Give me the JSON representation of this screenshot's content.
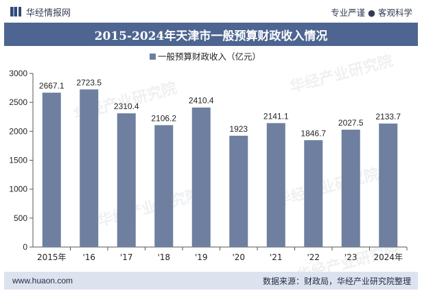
{
  "header": {
    "brand": "华经情报网",
    "tagline": "专业严谨 ● 客观科学"
  },
  "title": "2015-2024年天津市一般预算财政收入情况",
  "footer": {
    "website": "www.huaon.com",
    "source": "数据来源：财政局，华经产业研究院整理"
  },
  "watermark": "华经产业研究院",
  "colors": {
    "bar": "#6e7fa0",
    "title_bg": "#4d6590",
    "footer_bg": "#dde3ee",
    "text": "#222222"
  },
  "chart_data": {
    "type": "bar",
    "categories": [
      "2015年",
      "'16",
      "'17",
      "'18",
      "'19",
      "'20",
      "'21",
      "'22",
      "'23",
      "2024年"
    ],
    "series": [
      {
        "name": "一般预算财政收入（亿元）",
        "values": [
          2667.1,
          2723.5,
          2310.4,
          2106.2,
          2410.4,
          1923,
          2141.1,
          1846.7,
          2027.5,
          2133.7
        ]
      }
    ],
    "value_labels": [
      "2667.1",
      "2723.5",
      "2310.4",
      "2106.2",
      "2410.4",
      "1923",
      "2141.1",
      "1846.7",
      "2027.5",
      "2133.7"
    ],
    "y_ticks": [
      "0",
      "500",
      "1000",
      "1500",
      "2000",
      "2500",
      "3000"
    ],
    "ylim": [
      0,
      3000
    ],
    "legend_position": "top-center",
    "grid": false
  }
}
